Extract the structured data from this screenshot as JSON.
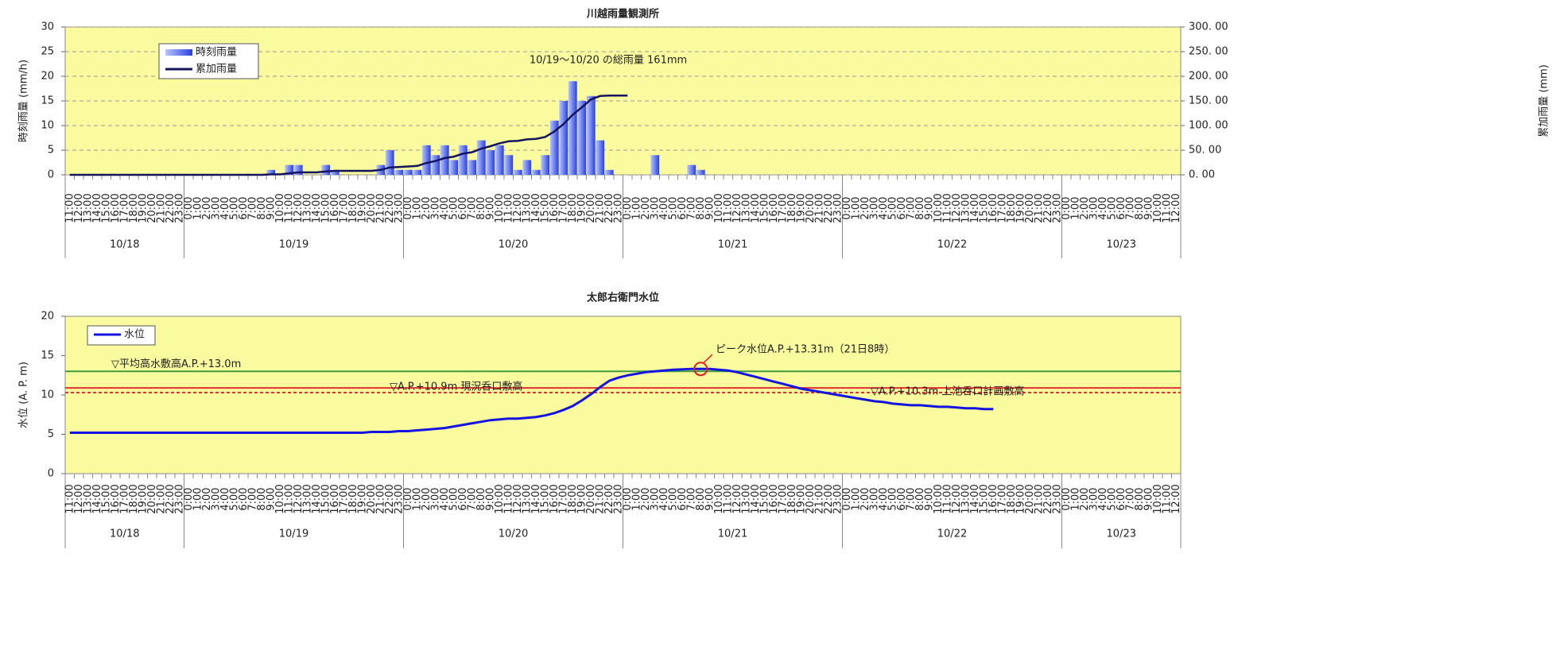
{
  "chart_data": [
    {
      "type": "bar",
      "title": "川越雨量観測所",
      "y_label": "時刻雨量 (mm/h)",
      "y2_label": "累加雨量 (mm)",
      "annotation": "10/19～10/20 の総雨量 161mm",
      "dates": [
        "10/18",
        "10/19",
        "10/20",
        "10/21",
        "10/22",
        "10/23"
      ],
      "categories": [
        "11:00",
        "12:00",
        "13:00",
        "14:00",
        "15:00",
        "16:00",
        "17:00",
        "18:00",
        "19:00",
        "20:00",
        "21:00",
        "22:00",
        "23:00",
        "0:00",
        "1:00",
        "2:00",
        "3:00",
        "4:00",
        "5:00",
        "6:00",
        "7:00",
        "8:00",
        "9:00",
        "10:00",
        "11:00",
        "12:00",
        "13:00",
        "14:00",
        "15:00",
        "16:00",
        "17:00",
        "18:00",
        "19:00",
        "20:00",
        "21:00",
        "22:00",
        "23:00",
        "0:00",
        "1:00",
        "2:00",
        "3:00",
        "4:00",
        "5:00",
        "6:00",
        "7:00",
        "8:00",
        "9:00",
        "10:00",
        "11:00",
        "12:00",
        "13:00",
        "14:00",
        "15:00",
        "16:00",
        "17:00",
        "18:00",
        "19:00",
        "20:00",
        "21:00",
        "22:00",
        "23:00",
        "0:00",
        "1:00",
        "2:00",
        "3:00",
        "4:00",
        "5:00",
        "6:00",
        "7:00",
        "8:00",
        "9:00",
        "10:00",
        "11:00",
        "12:00",
        "13:00",
        "14:00",
        "15:00",
        "16:00",
        "17:00",
        "18:00",
        "19:00",
        "20:00",
        "21:00",
        "22:00",
        "23:00",
        "0:00",
        "1:00",
        "2:00",
        "3:00",
        "4:00",
        "5:00",
        "6:00",
        "7:00",
        "8:00",
        "9:00",
        "10:00",
        "11:00",
        "12:00",
        "13:00",
        "14:00",
        "15:00",
        "16:00",
        "17:00",
        "18:00",
        "19:00",
        "20:00",
        "21:00",
        "22:00",
        "23:00",
        "0:00",
        "1:00",
        "2:00",
        "3:00",
        "4:00",
        "5:00",
        "6:00",
        "7:00",
        "8:00",
        "9:00",
        "10:00",
        "11:00",
        "12:00"
      ],
      "series": [
        {
          "name": "時刻雨量",
          "type": "bar",
          "color": "#3a56e8",
          "values": [
            0,
            0,
            0,
            0,
            0,
            0,
            0,
            0,
            0,
            0,
            0,
            0,
            0,
            0,
            0,
            0,
            0,
            0,
            0,
            0,
            0,
            0,
            1,
            0,
            2,
            2,
            0,
            0,
            2,
            1,
            0,
            0,
            0,
            0,
            2,
            5,
            1,
            1,
            1,
            6,
            4,
            6,
            3,
            6,
            3,
            7,
            5,
            6,
            4,
            1,
            3,
            1,
            4,
            11,
            15,
            19,
            15,
            16,
            7,
            1,
            0,
            0,
            0,
            0,
            4,
            0,
            0,
            0,
            2,
            1,
            0,
            0,
            0,
            0,
            0,
            0,
            0,
            0,
            0,
            0,
            0,
            0,
            0,
            0,
            0,
            0,
            0,
            0,
            0,
            0,
            0,
            0,
            0,
            0,
            0,
            0,
            0,
            0,
            0,
            0,
            0,
            0,
            0,
            0,
            0,
            0,
            0,
            0,
            0,
            0,
            0,
            0,
            0,
            0,
            0,
            0,
            0,
            0,
            0,
            0,
            0,
            0
          ]
        },
        {
          "name": "累加雨量",
          "type": "line",
          "axis": "y2",
          "color": "#14145e",
          "values": [
            0,
            0,
            0,
            0,
            0,
            0,
            0,
            0,
            0,
            0,
            0,
            0,
            0,
            0,
            0,
            0,
            0,
            0,
            0,
            0,
            0,
            0,
            1,
            1,
            3,
            5,
            5,
            5,
            7,
            8,
            8,
            8,
            8,
            8,
            10,
            15,
            16,
            17,
            18,
            24,
            28,
            34,
            37,
            43,
            46,
            53,
            58,
            64,
            68,
            69,
            72,
            73,
            77,
            88,
            103,
            122,
            137,
            153,
            160,
            161,
            161,
            161,
            null,
            null,
            null,
            null,
            null,
            null,
            null,
            null,
            null,
            null,
            null,
            null,
            null,
            null,
            null,
            null,
            null,
            null,
            null,
            null,
            null,
            null,
            null,
            null,
            null,
            null,
            null,
            null,
            null,
            null,
            null,
            null,
            null,
            null,
            null,
            null,
            null,
            null,
            null,
            null,
            null,
            null,
            null,
            null,
            null,
            null,
            null,
            null,
            null,
            null,
            null,
            null,
            null,
            null,
            null,
            null,
            null,
            null,
            null,
            null
          ]
        }
      ],
      "ylim": [
        0,
        30
      ],
      "yticks": [
        0,
        5,
        10,
        15,
        20,
        25,
        30
      ],
      "y2lim": [
        0,
        300
      ],
      "y2ticks": [
        {
          "value": 0,
          "label": "0. 00"
        },
        {
          "value": 50,
          "label": "50. 00"
        },
        {
          "value": 100,
          "label": "100. 00"
        },
        {
          "value": 150,
          "label": "150. 00"
        },
        {
          "value": 200,
          "label": "200. 00"
        },
        {
          "value": 250,
          "label": "250. 00"
        },
        {
          "value": 300,
          "label": "300. 00"
        }
      ],
      "grid": true,
      "background": "#fafa9e"
    },
    {
      "type": "line",
      "title": "太郎右衛門水位",
      "y_label": "水位 (A. P. m)",
      "annotation": "ピーク水位A.P.+13.31m（21日8時）",
      "dates": [
        "10/18",
        "10/19",
        "10/20",
        "10/21",
        "10/22",
        "10/23"
      ],
      "categories": [
        "11:00",
        "12:00",
        "13:00",
        "14:00",
        "15:00",
        "16:00",
        "17:00",
        "18:00",
        "19:00",
        "20:00",
        "21:00",
        "22:00",
        "23:00",
        "0:00",
        "1:00",
        "2:00",
        "3:00",
        "4:00",
        "5:00",
        "6:00",
        "7:00",
        "8:00",
        "9:00",
        "10:00",
        "11:00",
        "12:00",
        "13:00",
        "14:00",
        "15:00",
        "16:00",
        "17:00",
        "18:00",
        "19:00",
        "20:00",
        "21:00",
        "22:00",
        "23:00",
        "0:00",
        "1:00",
        "2:00",
        "3:00",
        "4:00",
        "5:00",
        "6:00",
        "7:00",
        "8:00",
        "9:00",
        "10:00",
        "11:00",
        "12:00",
        "13:00",
        "14:00",
        "15:00",
        "16:00",
        "17:00",
        "18:00",
        "19:00",
        "20:00",
        "21:00",
        "22:00",
        "23:00",
        "0:00",
        "1:00",
        "2:00",
        "3:00",
        "4:00",
        "5:00",
        "6:00",
        "7:00",
        "8:00",
        "9:00",
        "10:00",
        "11:00",
        "12:00",
        "13:00",
        "14:00",
        "15:00",
        "16:00",
        "17:00",
        "18:00",
        "19:00",
        "20:00",
        "21:00",
        "22:00",
        "23:00",
        "0:00",
        "1:00",
        "2:00",
        "3:00",
        "4:00",
        "5:00",
        "6:00",
        "7:00",
        "8:00",
        "9:00",
        "10:00",
        "11:00",
        "12:00",
        "13:00",
        "14:00",
        "15:00",
        "16:00",
        "17:00",
        "18:00",
        "19:00",
        "20:00",
        "21:00",
        "22:00",
        "23:00",
        "0:00",
        "1:00",
        "2:00",
        "3:00",
        "4:00",
        "5:00",
        "6:00",
        "7:00",
        "8:00",
        "9:00",
        "10:00",
        "11:00",
        "12:00"
      ],
      "series": [
        {
          "name": "水位",
          "type": "line",
          "color": "#1414e0",
          "values": [
            5.2,
            5.2,
            5.2,
            5.2,
            5.2,
            5.2,
            5.2,
            5.2,
            5.2,
            5.2,
            5.2,
            5.2,
            5.2,
            5.2,
            5.2,
            5.2,
            5.2,
            5.2,
            5.2,
            5.2,
            5.2,
            5.2,
            5.2,
            5.2,
            5.2,
            5.2,
            5.2,
            5.2,
            5.2,
            5.2,
            5.2,
            5.2,
            5.2,
            5.3,
            5.3,
            5.3,
            5.4,
            5.4,
            5.5,
            5.6,
            5.7,
            5.8,
            6.0,
            6.2,
            6.4,
            6.6,
            6.8,
            6.9,
            7.0,
            7.0,
            7.1,
            7.2,
            7.4,
            7.7,
            8.1,
            8.6,
            9.3,
            10.1,
            11.0,
            11.8,
            12.2,
            12.5,
            12.7,
            12.9,
            13.0,
            13.1,
            13.2,
            13.25,
            13.3,
            13.31,
            13.3,
            13.2,
            13.1,
            12.9,
            12.6,
            12.3,
            12.0,
            11.7,
            11.4,
            11.1,
            10.8,
            10.6,
            10.4,
            10.2,
            10.0,
            9.8,
            9.6,
            9.4,
            9.2,
            9.1,
            8.9,
            8.8,
            8.7,
            8.7,
            8.6,
            8.5,
            8.5,
            8.4,
            8.3,
            8.3,
            8.2,
            8.2,
            null,
            null,
            null,
            null,
            null,
            null,
            null,
            null,
            null,
            null,
            null,
            null,
            null,
            null,
            null,
            null,
            null,
            null,
            null,
            null
          ]
        }
      ],
      "reference_lines": [
        {
          "value": 13,
          "label": "▽平均高水敷高A.P.+13.0m",
          "color": "#3c9c3c",
          "dashed": false
        },
        {
          "value": 10.9,
          "label": "▽A.P.+10.9m  現況呑口敷高",
          "color": "#e03030",
          "dashed": false
        },
        {
          "value": 10.3,
          "label": "▽A.P.+10.3m  上池呑口計画敷高",
          "color": "#e03030",
          "dashed": true
        }
      ],
      "ylim": [
        0,
        20
      ],
      "yticks": [
        0,
        5,
        10,
        15,
        20
      ],
      "grid": false,
      "background": "#fafa9e"
    }
  ]
}
